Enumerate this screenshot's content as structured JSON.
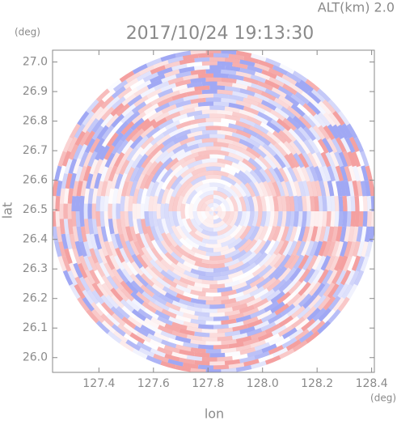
{
  "chart_data": {
    "type": "radar-ppi",
    "title": "2017/10/24 19:13:30",
    "subtitle": "ALT(km) 2.0",
    "x_label": "lon",
    "y_label": "lat",
    "x_unit": "(deg)",
    "y_unit": "(deg)",
    "xlim": [
      127.23,
      128.41
    ],
    "ylim": [
      25.95,
      27.04
    ],
    "xticks": [
      127.4,
      127.6,
      127.8,
      {
        "value": 128,
        "label": "128.0"
      },
      128.2,
      128.4
    ],
    "yticks": [
      {
        "value": 26,
        "label": "26.0"
      },
      26.1,
      26.2,
      26.3,
      26.4,
      26.5,
      26.6,
      26.7,
      26.8,
      26.9,
      {
        "value": 27,
        "label": "27.0"
      }
    ],
    "positive_color": "#f4a0a0",
    "negative_color": "#a0a8f4"
  }
}
